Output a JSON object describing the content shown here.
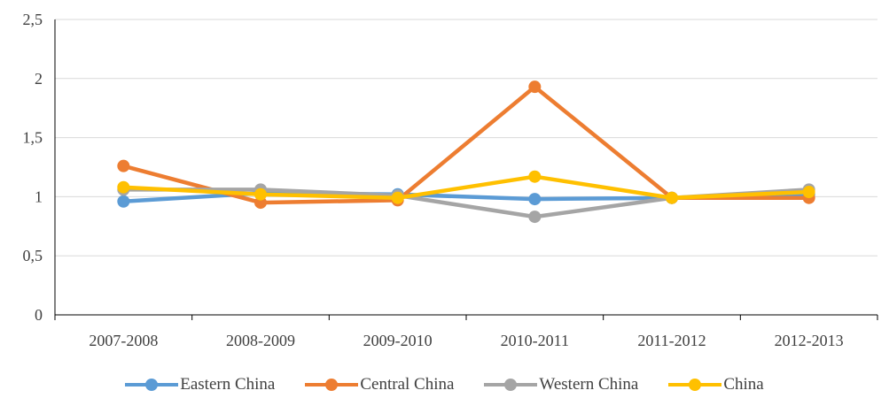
{
  "chart_data": {
    "type": "line",
    "categories": [
      "2007-2008",
      "2008-2009",
      "2009-2010",
      "2010-2011",
      "2011-2012",
      "2012-2013"
    ],
    "ylim": [
      0,
      2.5
    ],
    "yticks": [
      "0",
      "0,5",
      "1",
      "1,5",
      "2",
      "2,5"
    ],
    "ytick_values": [
      0,
      0.5,
      1,
      1.5,
      2,
      2.5
    ],
    "grid": true,
    "legend_position": "bottom",
    "series": [
      {
        "name": "Eastern China",
        "color": "#5B9BD5",
        "values": [
          0.96,
          1.03,
          1.02,
          0.98,
          0.99,
          1.02
        ]
      },
      {
        "name": "Central China",
        "color": "#ED7D31",
        "values": [
          1.26,
          0.95,
          0.97,
          1.93,
          0.99,
          0.99
        ]
      },
      {
        "name": "Western China",
        "color": "#A5A5A5",
        "values": [
          1.06,
          1.06,
          1.01,
          0.83,
          0.99,
          1.06
        ]
      },
      {
        "name": "China",
        "color": "#FFC000",
        "values": [
          1.08,
          1.02,
          0.99,
          1.17,
          0.99,
          1.04
        ]
      }
    ]
  }
}
